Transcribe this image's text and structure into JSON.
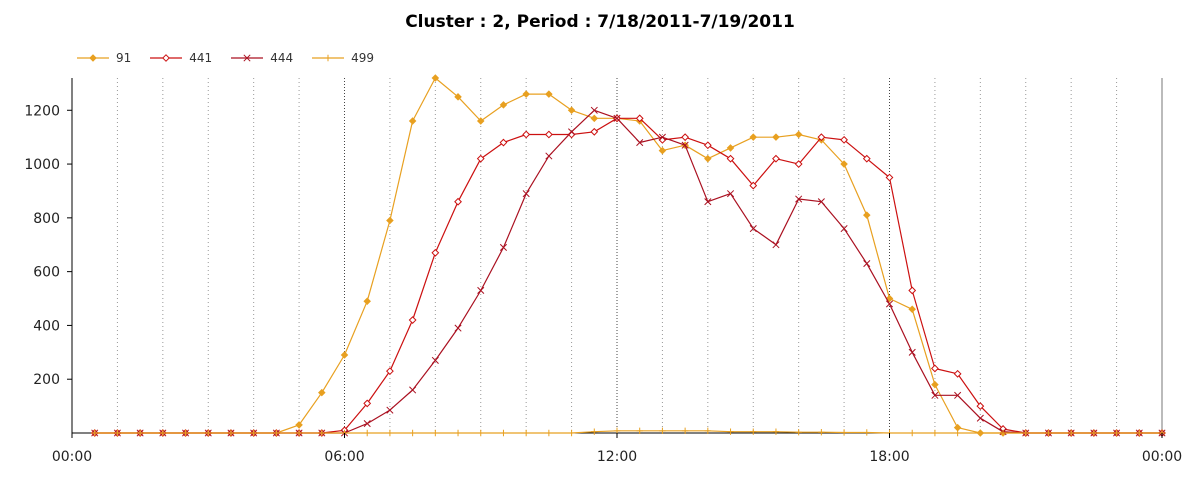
{
  "chart_data": {
    "type": "line",
    "title": "Cluster : 2, Period : 7/18/2011-7/19/2011",
    "xlabel": "",
    "ylabel": "",
    "x_tick_labels": [
      "00:00",
      "06:00",
      "12:00",
      "18:00",
      "00:00"
    ],
    "x_ticks_hours": [
      0,
      6,
      12,
      18,
      24
    ],
    "y_ticks": [
      200,
      400,
      600,
      800,
      1000,
      1200
    ],
    "xlim_hours": [
      0,
      24
    ],
    "ylim": [
      0,
      1320
    ],
    "grid": "vertical dotted",
    "legend_position": "top-left",
    "x_hours": [
      0.5,
      1,
      1.5,
      2,
      2.5,
      3,
      3.5,
      4,
      4.5,
      5,
      5.5,
      6,
      6.5,
      7,
      7.5,
      8,
      8.5,
      9,
      9.5,
      10,
      10.5,
      11,
      11.5,
      12,
      12.5,
      13,
      13.5,
      14,
      14.5,
      15,
      15.5,
      16,
      16.5,
      17,
      17.5,
      18,
      18.5,
      19,
      19.5,
      20,
      20.5,
      21,
      21.5,
      22,
      22.5,
      23,
      23.5,
      24
    ],
    "series": [
      {
        "name": "91",
        "color": "#e8a020",
        "marker": "diamond",
        "values": [
          0,
          0,
          0,
          0,
          0,
          0,
          0,
          0,
          0,
          30,
          150,
          290,
          490,
          790,
          1160,
          1320,
          1250,
          1160,
          1220,
          1260,
          1260,
          1200,
          1170,
          1170,
          1160,
          1050,
          1070,
          1020,
          1060,
          1100,
          1100,
          1110,
          1090,
          1000,
          810,
          500,
          460,
          180,
          20,
          0,
          0,
          0,
          0,
          0,
          0,
          0,
          0,
          0
        ]
      },
      {
        "name": "441",
        "color": "#cc1010",
        "marker": "diamond-open",
        "values": [
          0,
          0,
          0,
          0,
          0,
          0,
          0,
          0,
          0,
          0,
          0,
          10,
          110,
          230,
          420,
          670,
          860,
          1020,
          1080,
          1110,
          1110,
          1110,
          1120,
          1170,
          1170,
          1090,
          1100,
          1070,
          1020,
          920,
          1020,
          1000,
          1100,
          1090,
          1020,
          950,
          530,
          240,
          220,
          100,
          15,
          0,
          0,
          0,
          0,
          0,
          0,
          0
        ]
      },
      {
        "name": "444",
        "color": "#aa1020",
        "marker": "x",
        "values": [
          0,
          0,
          0,
          0,
          0,
          0,
          0,
          0,
          0,
          0,
          0,
          0,
          35,
          85,
          160,
          270,
          390,
          530,
          690,
          890,
          1030,
          1120,
          1200,
          1170,
          1080,
          1100,
          1070,
          860,
          890,
          760,
          700,
          870,
          860,
          760,
          630,
          480,
          300,
          140,
          140,
          55,
          5,
          0,
          0,
          0,
          0,
          0,
          0,
          0
        ]
      },
      {
        "name": "499",
        "color": "#e8a020",
        "marker": "plus",
        "values": [
          0,
          0,
          0,
          0,
          0,
          0,
          0,
          0,
          0,
          0,
          0,
          0,
          0,
          0,
          0,
          0,
          0,
          0,
          0,
          0,
          0,
          0,
          5,
          8,
          8,
          8,
          8,
          8,
          5,
          5,
          5,
          3,
          3,
          2,
          2,
          0,
          0,
          0,
          0,
          0,
          0,
          0,
          0,
          0,
          0,
          0,
          0,
          0
        ]
      }
    ]
  }
}
